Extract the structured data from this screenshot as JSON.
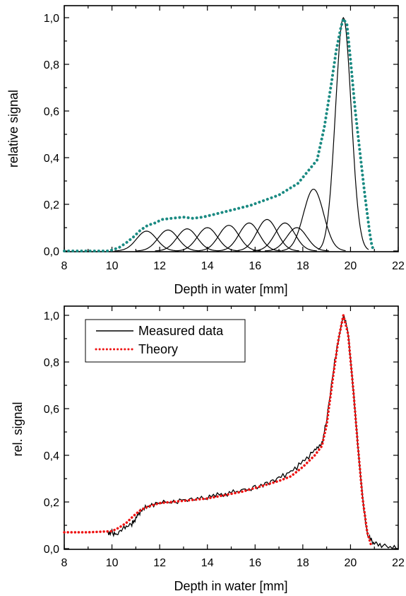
{
  "chart_data": [
    {
      "type": "line",
      "xlabel": "Depth in water [mm]",
      "ylabel": "relative signal",
      "xlim": [
        8,
        22
      ],
      "ylim": [
        0,
        1.05
      ],
      "x_ticks": [
        "8",
        "10",
        "12",
        "14",
        "16",
        "18",
        "20",
        "22"
      ],
      "y_ticks": [
        "0,0",
        "0,2",
        "0,4",
        "0,6",
        "0,8",
        "1,0"
      ],
      "colors": {
        "sum": "#1a8a82",
        "components": "#000000"
      },
      "series": [
        {
          "role": "sum",
          "style": "dotted",
          "x": [
            8.0,
            9.0,
            9.8,
            10.0,
            10.3,
            10.6,
            10.9,
            11.2,
            11.5,
            11.8,
            12.1,
            12.5,
            13.0,
            13.4,
            13.8,
            14.2,
            14.6,
            15.0,
            15.4,
            15.8,
            16.2,
            16.6,
            17.0,
            17.4,
            17.8,
            18.2,
            18.6,
            18.9,
            19.2,
            19.4,
            19.6,
            19.7,
            19.85,
            20.0,
            20.2,
            20.4,
            20.6,
            20.8,
            20.9,
            21.0
          ],
          "y": [
            0.0,
            0.0,
            0.0,
            0.004,
            0.015,
            0.035,
            0.06,
            0.09,
            0.11,
            0.12,
            0.135,
            0.14,
            0.145,
            0.14,
            0.145,
            0.155,
            0.165,
            0.175,
            0.185,
            0.195,
            0.21,
            0.225,
            0.24,
            0.265,
            0.29,
            0.34,
            0.39,
            0.53,
            0.72,
            0.86,
            0.96,
            0.995,
            0.97,
            0.82,
            0.6,
            0.42,
            0.24,
            0.08,
            0.02,
            0.0
          ]
        }
      ],
      "components": [
        {
          "peak_x": 11.45,
          "peak_y": 0.085
        },
        {
          "peak_x": 12.35,
          "peak_y": 0.09
        },
        {
          "peak_x": 13.15,
          "peak_y": 0.095
        },
        {
          "peak_x": 14.0,
          "peak_y": 0.1
        },
        {
          "peak_x": 14.9,
          "peak_y": 0.11
        },
        {
          "peak_x": 15.75,
          "peak_y": 0.12
        },
        {
          "peak_x": 16.5,
          "peak_y": 0.135
        },
        {
          "peak_x": 17.25,
          "peak_y": 0.12
        },
        {
          "peak_x": 17.75,
          "peak_y": 0.1
        },
        {
          "peak_x": 18.45,
          "peak_y": 0.265
        },
        {
          "peak_x": 19.7,
          "peak_y": 1.0
        }
      ]
    },
    {
      "type": "line",
      "xlabel": "Depth in water [mm]",
      "ylabel": "rel. signal",
      "xlim": [
        8,
        22
      ],
      "ylim": [
        0,
        1.05
      ],
      "x_ticks": [
        "8",
        "10",
        "12",
        "14",
        "16",
        "18",
        "20",
        "22"
      ],
      "y_ticks": [
        "0,0",
        "0,2",
        "0,4",
        "0,6",
        "0,8",
        "1,0"
      ],
      "legend_position": "top-left",
      "colors": {
        "measured": "#000000",
        "theory": "#ee1111"
      },
      "series": [
        {
          "name": "Measured data",
          "style": "solid",
          "x": [
            9.8,
            10.0,
            10.2,
            10.5,
            10.8,
            11.0,
            11.2,
            11.5,
            12.0,
            12.5,
            13.0,
            13.5,
            14.0,
            14.5,
            15.0,
            15.5,
            16.0,
            16.5,
            17.0,
            17.5,
            18.0,
            18.5,
            18.8,
            19.0,
            19.3,
            19.5,
            19.7,
            19.9,
            20.1,
            20.3,
            20.5,
            20.7,
            20.9,
            21.1,
            21.5,
            22.0
          ],
          "y": [
            0.07,
            0.07,
            0.06,
            0.09,
            0.1,
            0.13,
            0.16,
            0.18,
            0.2,
            0.2,
            0.21,
            0.21,
            0.22,
            0.23,
            0.24,
            0.25,
            0.26,
            0.28,
            0.3,
            0.33,
            0.37,
            0.42,
            0.45,
            0.55,
            0.78,
            0.9,
            1.0,
            0.93,
            0.7,
            0.45,
            0.22,
            0.06,
            0.03,
            0.02,
            0.01,
            0.0
          ]
        },
        {
          "name": "Theory",
          "style": "dotted",
          "x": [
            8.0,
            9.0,
            10.0,
            10.3,
            10.6,
            10.9,
            11.2,
            11.5,
            12.0,
            12.5,
            13.0,
            13.5,
            14.0,
            14.5,
            15.0,
            15.5,
            16.0,
            16.5,
            17.0,
            17.5,
            18.0,
            18.5,
            18.8,
            19.0,
            19.3,
            19.5,
            19.7,
            19.9,
            20.1,
            20.3,
            20.5,
            20.7,
            20.85
          ],
          "y": [
            0.07,
            0.07,
            0.075,
            0.09,
            0.11,
            0.14,
            0.165,
            0.18,
            0.195,
            0.2,
            0.205,
            0.21,
            0.215,
            0.225,
            0.235,
            0.245,
            0.26,
            0.275,
            0.29,
            0.31,
            0.35,
            0.4,
            0.44,
            0.53,
            0.76,
            0.9,
            1.0,
            0.92,
            0.7,
            0.45,
            0.22,
            0.07,
            0.02
          ]
        }
      ]
    }
  ]
}
